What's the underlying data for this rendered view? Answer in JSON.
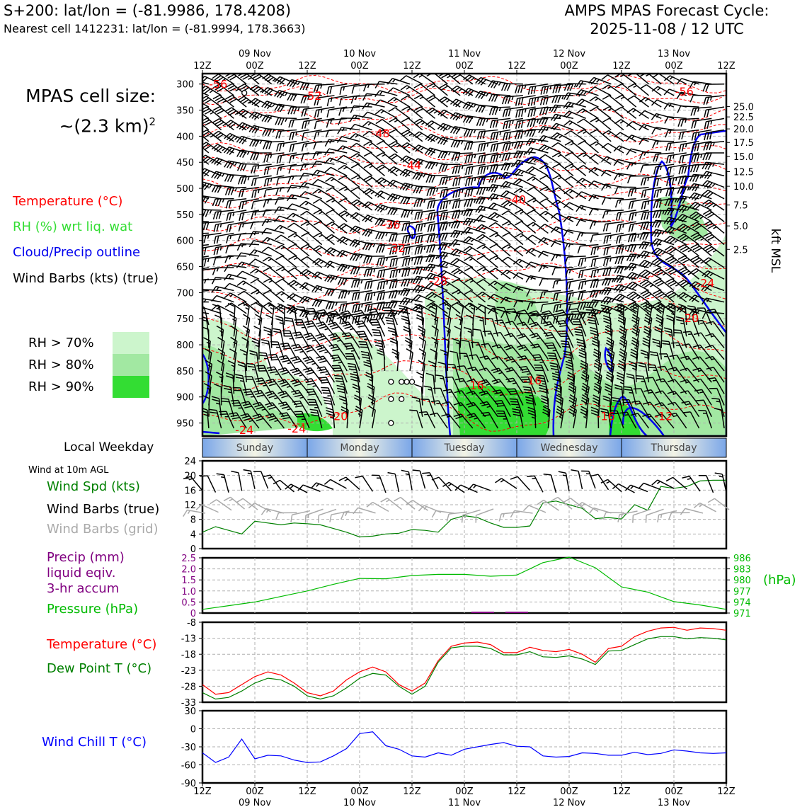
{
  "header": {
    "left_title": "S+200: lat/lon = (-81.9986, 178.4208)",
    "left_sub": "Nearest cell 1412231: lat/lon = (-81.9994, 178.3663)",
    "right_title": "AMPS MPAS Forecast Cycle:",
    "right_sub": "2025-11-08 / 12 UTC"
  },
  "cell_size": {
    "line1": "MPAS cell size:",
    "line2": "~(2.3 km)",
    "sup": "2"
  },
  "legend_upper": {
    "temperature": "Temperature (°C)",
    "rh": "RH (%) wrt liq. wat",
    "cloud": "Cloud/Precip outline",
    "wind": "Wind Barbs (kts) (true)",
    "rh70": "RH > 70%",
    "rh80": "RH > 80%",
    "rh90": "RH > 90%"
  },
  "colors": {
    "temp": "#ff0000",
    "rh_label": "#33dd33",
    "cloud": "#0000ee",
    "rh70": "#ccf5cc",
    "rh80": "#a2e8a2",
    "rh90": "#33dd33",
    "windspd": "#008000",
    "grid_barb": "#aaaaaa",
    "precip": "#800080",
    "pressure": "#00bb00",
    "dew": "#008000",
    "chill": "#0000ff"
  },
  "time_axis": {
    "top_dates": [
      "09 Nov",
      "10 Nov",
      "11 Nov",
      "12 Nov",
      "13 Nov"
    ],
    "top_ticks": [
      "12Z",
      "00Z",
      "12Z",
      "00Z",
      "12Z",
      "00Z",
      "12Z",
      "00Z",
      "12Z",
      "00Z",
      "12Z"
    ],
    "bottom_ticks": [
      "12Z",
      "00Z",
      "12Z",
      "00Z",
      "12Z",
      "00Z",
      "12Z",
      "00Z",
      "12Z",
      "00Z",
      "12Z"
    ],
    "bottom_dates": [
      "09 Nov",
      "10 Nov",
      "11 Nov",
      "12 Nov",
      "13 Nov"
    ]
  },
  "weekday": {
    "label": "Local Weekday",
    "days": [
      "Sunday",
      "Monday",
      "Tuesday",
      "Wednesday",
      "Thursday"
    ]
  },
  "legend_wind": {
    "title": "Wind at 10m AGL",
    "spd": "Wind Spd (kts)",
    "barbs": "Wind Barbs (true)",
    "grid": "Wind Barbs (grid)"
  },
  "legend_precip": {
    "line1": "Precip (mm)",
    "line2": "liquid eqiv.",
    "line3": "3-hr accum",
    "pressure": "Pressure (hPa)",
    "hpa_unit": "(hPa)"
  },
  "legend_temp": {
    "temp": "Temperature (°C)",
    "dew": "Dew Point T (°C)"
  },
  "legend_chill": {
    "label": "Wind Chill T (°C)"
  },
  "chart_data": [
    {
      "type": "contour",
      "name": "cross-section",
      "y_left_label_ticks": [
        "300",
        "350",
        "400",
        "450",
        "500",
        "550",
        "600",
        "650",
        "700",
        "750",
        "800",
        "850",
        "900",
        "950"
      ],
      "y_left_values": [
        300,
        350,
        400,
        450,
        500,
        550,
        600,
        650,
        700,
        750,
        800,
        850,
        900,
        950
      ],
      "y_right_title": "kft MSL",
      "y_right_ticks": [
        "25.0",
        "22.5",
        "20.0",
        "17.5",
        "15.0",
        "12.5",
        "10.0",
        "7.5",
        "5.0",
        "2.5"
      ],
      "y_right_pressure": [
        343,
        363,
        386,
        412,
        439,
        468,
        496,
        532,
        572,
        617
      ],
      "temp_contour_labels": [
        {
          "text": "-56",
          "t": 0.3,
          "p": 300
        },
        {
          "text": "-52",
          "t": 2.1,
          "p": 322
        },
        {
          "text": "-48",
          "t": 3.4,
          "p": 394
        },
        {
          "text": "-44",
          "t": 4.0,
          "p": 455
        },
        {
          "text": "-40",
          "t": 6.0,
          "p": 521
        },
        {
          "text": "-36",
          "t": 3.6,
          "p": 569
        },
        {
          "text": "-32",
          "t": 3.7,
          "p": 614
        },
        {
          "text": "-28",
          "t": 4.5,
          "p": 677
        },
        {
          "text": "-24",
          "t": 9.6,
          "p": 681
        },
        {
          "text": "-20",
          "t": 9.3,
          "p": 748
        },
        {
          "text": "-16",
          "t": 5.2,
          "p": 877
        },
        {
          "text": "-16",
          "t": 6.3,
          "p": 868
        },
        {
          "text": "-20",
          "t": 2.6,
          "p": 936
        },
        {
          "text": "-24",
          "t": 0.8,
          "p": 963
        },
        {
          "text": "-24",
          "t": 1.8,
          "p": 960
        },
        {
          "text": "-16",
          "t": 7.7,
          "p": 936
        },
        {
          "text": "-12",
          "t": 8.8,
          "p": 936
        },
        {
          "text": "-56",
          "t": 9.2,
          "p": 314
        }
      ],
      "calm_marks": [
        {
          "t": 0.8,
          "p": 317
        },
        {
          "t": 3.6,
          "p": 871
        },
        {
          "t": 3.8,
          "p": 871
        },
        {
          "t": 3.9,
          "p": 871
        },
        {
          "t": 4.0,
          "p": 871
        },
        {
          "t": 3.6,
          "p": 904
        },
        {
          "t": 3.8,
          "p": 904
        },
        {
          "t": 3.6,
          "p": 950
        }
      ]
    },
    {
      "type": "line",
      "name": "wind-speed",
      "title": "Wind Spd (kts)",
      "y_ticks": [
        "0",
        "4",
        "8",
        "12",
        "16",
        "20",
        "24"
      ],
      "ylim": [
        0,
        24
      ],
      "x": [
        0,
        0.25,
        0.5,
        0.75,
        1,
        1.25,
        1.5,
        1.75,
        2,
        2.25,
        2.5,
        2.75,
        3,
        3.25,
        3.5,
        3.75,
        4,
        4.25,
        4.5,
        4.75,
        5,
        5.25,
        5.5,
        5.75,
        6,
        6.25,
        6.5,
        6.75,
        7,
        7.25,
        7.5,
        7.75,
        8,
        8.25,
        8.5,
        8.75,
        9,
        9.25,
        9.5,
        9.75,
        10
      ],
      "values": [
        4.5,
        6,
        5,
        4,
        7.5,
        7,
        6.5,
        7,
        6.8,
        6.5,
        5.5,
        4.5,
        3.2,
        3.4,
        4,
        4.2,
        5.2,
        5,
        4.5,
        8,
        9,
        8.5,
        7,
        5.8,
        5.8,
        6.2,
        12.5,
        13,
        12,
        11,
        8.2,
        8.5,
        8.1,
        12,
        10.5,
        17,
        16.5,
        17,
        18.5,
        18.7,
        18.7
      ]
    },
    {
      "type": "bar+line",
      "name": "precip-pressure",
      "precip_y_ticks": [
        "0",
        "0.5",
        "1.0",
        "1.5",
        "2.0",
        "2.5"
      ],
      "precip_ylim": [
        0,
        2.5
      ],
      "pressure_y_ticks": [
        "971",
        "974",
        "977",
        "980",
        "983",
        "986"
      ],
      "pressure_ylim": [
        971,
        986
      ],
      "x": [
        0,
        0.5,
        1,
        1.5,
        2,
        2.5,
        3,
        3.5,
        4,
        4.5,
        5,
        5.5,
        6,
        6.5,
        7,
        7.5,
        8,
        8.5,
        9,
        9.5,
        10
      ],
      "pressure": [
        972,
        973,
        974,
        975.5,
        977,
        978.8,
        980.4,
        980.3,
        981.2,
        981.5,
        981.5,
        981.0,
        981.3,
        984.7,
        986.2,
        983.3,
        978.1,
        976.7,
        974.1,
        973.2,
        972.0
      ],
      "precip_bars": [
        {
          "t": 5.35,
          "value": 0.06
        },
        {
          "t": 6.0,
          "value": 0.06
        }
      ]
    },
    {
      "type": "line",
      "name": "temperature-dewpoint",
      "y_ticks": [
        "-33",
        "-28",
        "-23",
        "-18",
        "-13",
        "-8"
      ],
      "ylim": [
        -33,
        -8
      ],
      "x": [
        0,
        0.25,
        0.5,
        0.75,
        1,
        1.25,
        1.5,
        1.75,
        2,
        2.25,
        2.5,
        2.75,
        3,
        3.25,
        3.5,
        3.75,
        4,
        4.25,
        4.5,
        4.75,
        5,
        5.25,
        5.5,
        5.75,
        6,
        6.25,
        6.5,
        6.75,
        7,
        7.25,
        7.5,
        7.75,
        8,
        8.25,
        8.5,
        8.75,
        9,
        9.25,
        9.5,
        9.75,
        10
      ],
      "temperature": [
        -27.5,
        -30.5,
        -30,
        -27.5,
        -25,
        -23.5,
        -24.5,
        -27,
        -30,
        -31,
        -29.5,
        -26,
        -23.5,
        -22,
        -23.5,
        -27.5,
        -29.5,
        -27,
        -20,
        -15.5,
        -14.5,
        -14.2,
        -15,
        -17.5,
        -17.5,
        -15.8,
        -16.8,
        -17.2,
        -16.5,
        -18,
        -20.5,
        -16.2,
        -15.5,
        -12.5,
        -10.8,
        -9.8,
        -9.6,
        -10.5,
        -9.8,
        -10,
        -10.5
      ],
      "dewpoint": [
        -30,
        -32,
        -31.5,
        -29.5,
        -27,
        -25.5,
        -26,
        -28,
        -31,
        -32,
        -31,
        -28.5,
        -25.5,
        -24,
        -24.5,
        -28,
        -30.5,
        -28,
        -20.5,
        -16,
        -15.5,
        -15.5,
        -16.2,
        -18.2,
        -18.2,
        -17.2,
        -18.8,
        -19,
        -18.5,
        -19.5,
        -21.2,
        -17,
        -16.8,
        -15,
        -13.2,
        -12.5,
        -12.5,
        -13.2,
        -12.8,
        -13,
        -13.5
      ]
    },
    {
      "type": "line",
      "name": "wind-chill",
      "y_ticks": [
        "-90",
        "-60",
        "-30",
        "0",
        "30"
      ],
      "ylim": [
        -90,
        30
      ],
      "x": [
        0,
        0.25,
        0.5,
        0.75,
        1,
        1.25,
        1.5,
        1.75,
        2,
        2.25,
        2.5,
        2.75,
        3,
        3.25,
        3.5,
        3.75,
        4,
        4.25,
        4.5,
        4.75,
        5,
        5.25,
        5.5,
        5.75,
        6,
        6.25,
        6.5,
        6.75,
        7,
        7.25,
        7.5,
        7.75,
        8,
        8.25,
        8.5,
        8.75,
        9,
        9.25,
        9.5,
        9.75,
        10
      ],
      "values": [
        -40,
        -56,
        -47,
        -17,
        -50,
        -44,
        -45,
        -52,
        -56,
        -55,
        -45,
        -33,
        -8,
        -5,
        -28,
        -34,
        -45,
        -47,
        -40,
        -44,
        -34,
        -30,
        -26,
        -23,
        -29,
        -30,
        -45,
        -47,
        -46,
        -40,
        -41,
        -44,
        -44,
        -39,
        -43,
        -41,
        -35,
        -37,
        -40,
        -41,
        -40
      ]
    }
  ]
}
